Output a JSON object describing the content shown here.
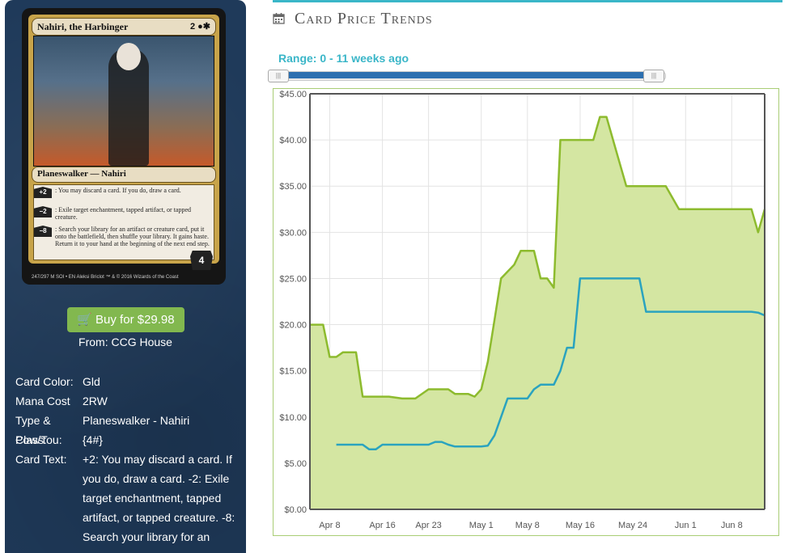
{
  "card": {
    "name": "Nahiri, the Harbinger",
    "mana_symbols": "2 ●✱",
    "type_line": "Planeswalker — Nahiri",
    "abilities": [
      {
        "cost": "+2",
        "text": ": You may discard a card. If you do, draw a card."
      },
      {
        "cost": "−2",
        "text": ": Exile target enchantment, tapped artifact, or tapped creature."
      },
      {
        "cost": "−8",
        "text": ": Search your library for an artifact or creature card, put it onto the battlefield, then shuffle your library. It gains haste. Return it to your hand at the beginning of the next end step."
      }
    ],
    "loyalty": "4",
    "footer": "247/297 M  SOI • EN  Aleksi Briclot     ™ & © 2016 Wizards of the Coast"
  },
  "buy": {
    "label": "Buy for $29.98",
    "icon": "shopping-cart-icon",
    "color": "#82b84f"
  },
  "from": "From: CCG House",
  "details": [
    {
      "key": "Card Color:",
      "value": "Gld"
    },
    {
      "key": "Mana Cost",
      "value": "2RW"
    },
    {
      "key": "Type & Class:",
      "value": "Planeswalker - Nahiri"
    },
    {
      "key": "Pow/Tou:",
      "value": "{4#}"
    },
    {
      "key": "Card Text:",
      "value": "+2: You may discard a card. If you do, draw a card. -2: Exile target enchantment, tapped artifact, or tapped creature. -8: Search your library for an"
    }
  ],
  "header": {
    "title": "Card Price Trends",
    "icon": "calendar-icon",
    "accent": "#3ab6c8"
  },
  "range": {
    "label": "Range: 0 - 11 weeks ago",
    "from": 0,
    "to": 11
  },
  "chart_data": {
    "type": "area",
    "ylim": [
      0,
      45
    ],
    "yticks": [
      "$0.00",
      "$5.00",
      "$10.00",
      "$15.00",
      "$20.00",
      "$25.00",
      "$30.00",
      "$35.00",
      "$40.00",
      "$45.00"
    ],
    "xticks": [
      {
        "label": "Apr 8",
        "day": 3
      },
      {
        "label": "Apr 16",
        "day": 11
      },
      {
        "label": "Apr 23",
        "day": 18
      },
      {
        "label": "May 1",
        "day": 26
      },
      {
        "label": "May 8",
        "day": 33
      },
      {
        "label": "May 16",
        "day": 41
      },
      {
        "label": "May 24",
        "day": 49
      },
      {
        "label": "Jun 1",
        "day": 57
      },
      {
        "label": "Jun 8",
        "day": 64
      }
    ],
    "xrange": [
      0,
      69
    ],
    "grid": true,
    "colors": {
      "area_fill": "#d4e6a2",
      "area_line": "#8dbb2e",
      "line": "#2aa3bf"
    },
    "series": [
      {
        "kind": "area",
        "x": [
          0,
          2,
          3,
          4,
          5,
          7,
          8,
          9,
          10,
          11,
          12,
          14,
          16,
          18,
          19,
          20,
          21,
          22,
          23,
          24,
          25,
          26,
          27,
          28,
          29,
          31,
          32,
          33,
          34,
          35,
          36,
          37,
          38,
          39,
          40,
          41,
          42,
          43,
          44,
          45,
          47,
          48,
          49,
          50,
          51,
          52,
          54,
          56,
          57,
          58,
          59,
          60,
          61,
          63,
          65,
          66,
          67,
          68,
          69
        ],
        "y": [
          20,
          20,
          16.5,
          16.5,
          17,
          17,
          12.2,
          12.2,
          12.2,
          12.2,
          12.2,
          12,
          12,
          13,
          13,
          13,
          13,
          12.5,
          12.5,
          12.5,
          12.2,
          13,
          16,
          20.5,
          25,
          26.5,
          28,
          28,
          28,
          25,
          25,
          24,
          40,
          40,
          40,
          40,
          40,
          40,
          42.5,
          42.5,
          37.5,
          35,
          35,
          35,
          35,
          35,
          35,
          32.5,
          32.5,
          32.5,
          32.5,
          32.5,
          32.5,
          32.5,
          32.5,
          32.5,
          32.5,
          30,
          32.5
        ]
      },
      {
        "kind": "line",
        "x": [
          4,
          8,
          9,
          10,
          11,
          12,
          18,
          19,
          20,
          21,
          22,
          26,
          27,
          28,
          29,
          30,
          33,
          34,
          35,
          36,
          37,
          38,
          39,
          40,
          41,
          42,
          43,
          44,
          45,
          49,
          50,
          51,
          52,
          55,
          58,
          61,
          64,
          67,
          68,
          69
        ],
        "y": [
          7,
          7,
          6.5,
          6.5,
          7,
          7,
          7,
          7.3,
          7.3,
          7,
          6.8,
          6.8,
          6.9,
          8,
          10,
          12,
          12,
          13,
          13.5,
          13.5,
          13.5,
          15,
          17.5,
          17.5,
          25,
          25,
          25,
          25,
          25,
          25,
          25,
          21.4,
          21.4,
          21.4,
          21.4,
          21.4,
          21.4,
          21.4,
          21.3,
          21
        ]
      }
    ]
  }
}
